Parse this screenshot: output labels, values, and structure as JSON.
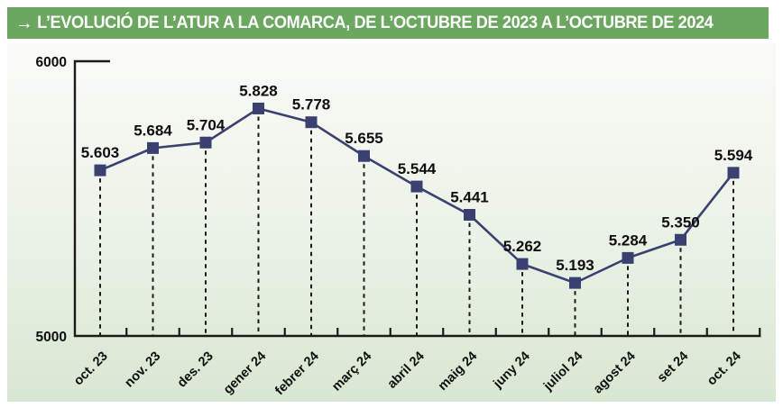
{
  "header": {
    "arrow": "→",
    "title": "L’EVOLUCIÓ DE L’ATUR A LA COMARCA, DE L’OCTUBRE DE 2023 A L’OCTUBRE DE 2024",
    "bg_color": "#6ba75f",
    "text_color": "#ffffff"
  },
  "chart_data": {
    "type": "line",
    "title": "L’evolució de l’atur a la comarca, de l’octubre de 2023 a l’octubre de 2024",
    "categories": [
      "oct. 23",
      "nov. 23",
      "des. 23",
      "gener 24",
      "febrer 24",
      "març 24",
      "abril 24",
      "maig 24",
      "juny 24",
      "juliol 24",
      "agost 24",
      "set 24",
      "oct. 24"
    ],
    "values": [
      5603,
      5684,
      5704,
      5828,
      5778,
      5655,
      5544,
      5441,
      5262,
      5193,
      5284,
      5350,
      5594
    ],
    "value_labels": [
      "5.603",
      "5.684",
      "5.704",
      "5.828",
      "5.778",
      "5.655",
      "5.544",
      "5.441",
      "5.262",
      "5.193",
      "5.284",
      "5.350",
      "5.594"
    ],
    "xlabel": "",
    "ylabel": "",
    "ylim": [
      5000,
      6000
    ],
    "ytick_labels": [
      "5000",
      "6000"
    ],
    "legend": "none",
    "grid": "dashed vertical drop lines from each point to x-axis",
    "marker": "square",
    "series_color": "#3a4170",
    "axis_color": "#1a1a1a",
    "label_color": "#0e0e0e"
  }
}
